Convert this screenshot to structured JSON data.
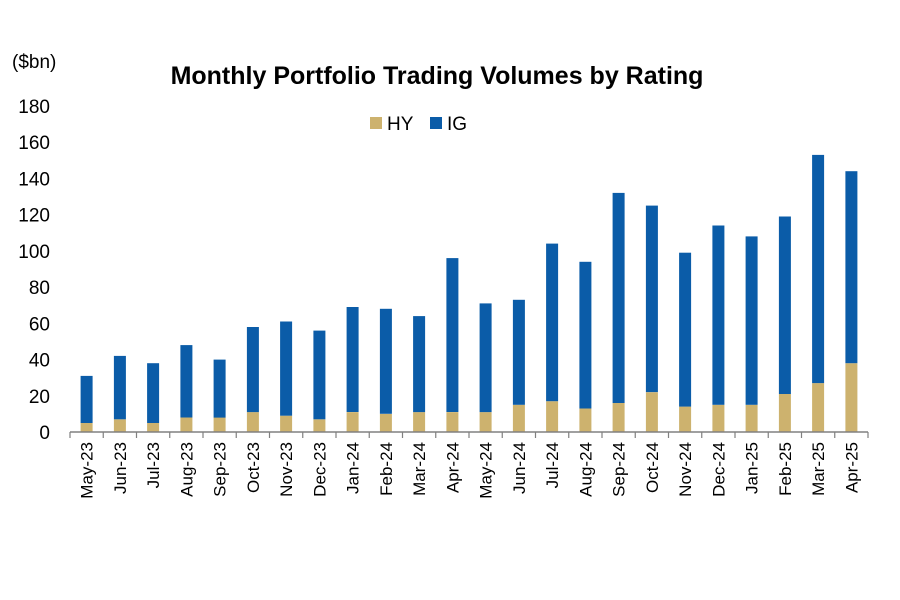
{
  "chart_data": {
    "type": "bar",
    "stacked": true,
    "title": "Monthly Portfolio Trading Volumes by Rating",
    "ylabel": "($bn)",
    "xlabel": "",
    "ylim": [
      0,
      180
    ],
    "yticks": [
      0,
      20,
      40,
      60,
      80,
      100,
      120,
      140,
      160,
      180
    ],
    "grid": false,
    "legend_position": "top-center",
    "categories": [
      "May-23",
      "Jun-23",
      "Jul-23",
      "Aug-23",
      "Sep-23",
      "Oct-23",
      "Nov-23",
      "Dec-23",
      "Jan-24",
      "Feb-24",
      "Mar-24",
      "Apr-24",
      "May-24",
      "Jun-24",
      "Jul-24",
      "Aug-24",
      "Sep-24",
      "Oct-24",
      "Nov-24",
      "Dec-24",
      "Jan-25",
      "Feb-25",
      "Mar-25",
      "Apr-25"
    ],
    "series": [
      {
        "name": "HY",
        "color": "#CDB26E",
        "values": [
          5,
          7,
          5,
          8,
          8,
          11,
          9,
          7,
          11,
          10,
          11,
          11,
          11,
          15,
          17,
          13,
          16,
          22,
          14,
          15,
          15,
          21,
          27,
          38
        ]
      },
      {
        "name": "IG",
        "color": "#0B5CA8",
        "values": [
          26,
          35,
          33,
          40,
          32,
          47,
          52,
          49,
          58,
          58,
          53,
          85,
          60,
          58,
          87,
          81,
          116,
          103,
          85,
          99,
          93,
          98,
          126,
          106
        ]
      }
    ]
  }
}
